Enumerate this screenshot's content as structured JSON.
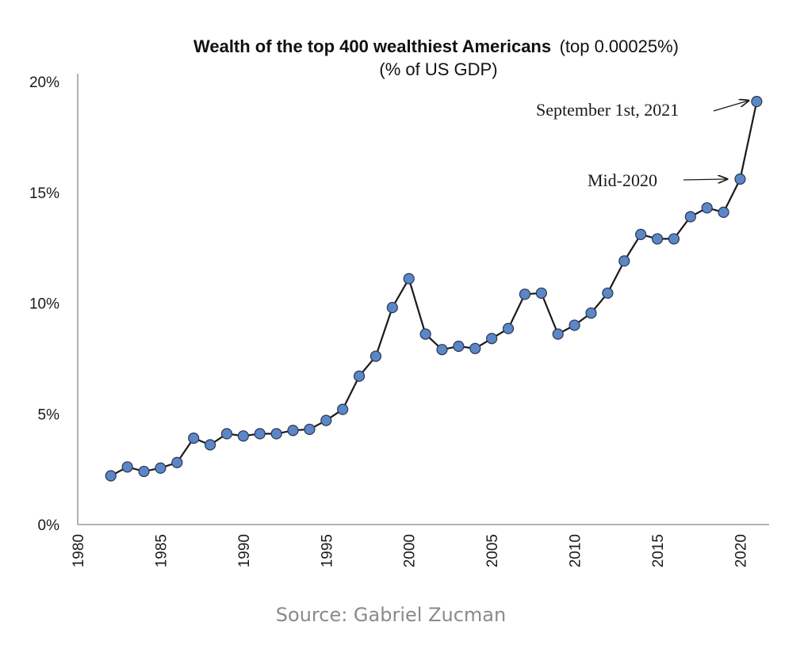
{
  "chart_data": {
    "type": "line",
    "title_bold": "Wealth of the top 400 wealthiest Americans",
    "title_normal": "(top 0.00025%)",
    "subtitle": "(% of US GDP)",
    "xlabel": "",
    "ylabel": "",
    "xlim": [
      1980,
      2021.5
    ],
    "ylim": [
      0,
      20
    ],
    "x_ticks": [
      1980,
      1985,
      1990,
      1995,
      2000,
      2005,
      2010,
      2015,
      2020
    ],
    "y_ticks": [
      {
        "value": 0,
        "label": "0%"
      },
      {
        "value": 5,
        "label": "5%"
      },
      {
        "value": 10,
        "label": "10%"
      },
      {
        "value": 15,
        "label": "15%"
      },
      {
        "value": 20,
        "label": "20%"
      }
    ],
    "grid": false,
    "series": [
      {
        "name": "Top 400 wealth (% of GDP)",
        "color": "#5b87c7",
        "line_color": "#1a1a1a",
        "points": [
          {
            "x": 1982,
            "y": 2.2
          },
          {
            "x": 1983,
            "y": 2.6
          },
          {
            "x": 1984,
            "y": 2.4
          },
          {
            "x": 1985,
            "y": 2.55
          },
          {
            "x": 1986,
            "y": 2.8
          },
          {
            "x": 1987,
            "y": 3.9
          },
          {
            "x": 1988,
            "y": 3.6
          },
          {
            "x": 1989,
            "y": 4.1
          },
          {
            "x": 1990,
            "y": 4.0
          },
          {
            "x": 1991,
            "y": 4.1
          },
          {
            "x": 1992,
            "y": 4.1
          },
          {
            "x": 1993,
            "y": 4.25
          },
          {
            "x": 1994,
            "y": 4.3
          },
          {
            "x": 1995,
            "y": 4.7
          },
          {
            "x": 1996,
            "y": 5.2
          },
          {
            "x": 1997,
            "y": 6.7
          },
          {
            "x": 1998,
            "y": 7.6
          },
          {
            "x": 1999,
            "y": 9.8
          },
          {
            "x": 2000,
            "y": 11.1
          },
          {
            "x": 2001,
            "y": 8.6
          },
          {
            "x": 2002,
            "y": 7.9
          },
          {
            "x": 2003,
            "y": 8.05
          },
          {
            "x": 2004,
            "y": 7.95
          },
          {
            "x": 2005,
            "y": 8.4
          },
          {
            "x": 2006,
            "y": 8.85
          },
          {
            "x": 2007,
            "y": 10.4
          },
          {
            "x": 2008,
            "y": 10.45
          },
          {
            "x": 2009,
            "y": 8.6
          },
          {
            "x": 2010,
            "y": 9.0
          },
          {
            "x": 2011,
            "y": 9.55
          },
          {
            "x": 2012,
            "y": 10.45
          },
          {
            "x": 2013,
            "y": 11.9
          },
          {
            "x": 2014,
            "y": 13.1
          },
          {
            "x": 2015,
            "y": 12.9
          },
          {
            "x": 2016,
            "y": 12.9
          },
          {
            "x": 2017,
            "y": 13.9
          },
          {
            "x": 2018,
            "y": 14.3
          },
          {
            "x": 2019,
            "y": 14.1
          },
          {
            "x": 2020,
            "y": 15.6
          },
          {
            "x": 2021,
            "y": 19.1
          }
        ]
      }
    ],
    "annotations": [
      {
        "id": "sept-2021",
        "text": "September 1st, 2021",
        "target_x": 2021,
        "target_y": 19.1
      },
      {
        "id": "mid-2020",
        "text": "Mid-2020",
        "target_x": 2020,
        "target_y": 15.6
      }
    ]
  },
  "footer": {
    "source": "Source: Gabriel Zucman"
  }
}
